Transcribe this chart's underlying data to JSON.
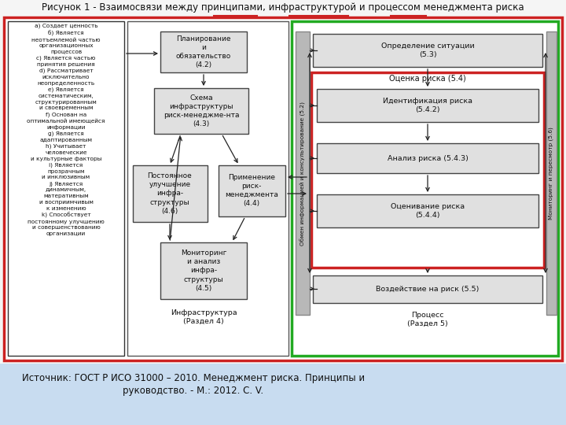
{
  "title": "Рисунок 1 - Взаимосвязи между принципами, инфраструктурой и процессом менеджмента риска",
  "footer_text": "Источник: ГОСТ Р ИСО 31000 – 2010. Менеджмент риска. Принципы и\nруководство. - М.: 2012. С. V.",
  "bg_color": "#f5f5f5",
  "footer_bg": "#c8dcf0",
  "main_border_color": "#cc2222",
  "green_border_color": "#22aa22",
  "red_inner_border": "#cc2222",
  "gray_box_fill": "#e0e0e0",
  "white_fill": "#ffffff",
  "dark_border": "#333333",
  "principles_text": "а) Создает ценность\nб) Является\nнеотъемлемой частью\nорганизационных\nпроцессов\nс) Является частью\nпринятия решения\nd) Рассматривает\nисключительно\nнеопределенность\nе) Является\nсистематическим,\nструктурированным\nи своевременным\nf) Основан на\nоптимальной имеющейся\nинформации\ng) Является\nадаптированным\nh) Учитывает\nчеловеческие\nи культурные факторы\ni) Является\nпрозрачным\nи инклюзивным\nj) Является\nдинамичным,\nматеративным\nи восприимчивым\nк изменению\nk) Способствует\nпостоянному улучшению\nи совершенствованию\nорганизации",
  "box_planning": "Планирование\nи\nобязательство\n(4.2)",
  "box_schema": "Схема\nинфраструктуры\nриск-менеджме-нта\n(4.3)",
  "box_constant": "Постоянное\nулучшение\nинфра-\nструктуры\n(4.6)",
  "box_apply": "Применение\nриск-\nменеджмента\n(4.4)",
  "box_monitoring": "Мониторинг\nи анализ\nинфра-\nструктуры\n(4.5)",
  "box_infra_label": "Инфраструктура\n(Раздел 4)",
  "box_situation": "Определение ситуации\n(5.3)",
  "box_risk_assess": "Оценка риска (5.4)",
  "box_identification": "Идентификация риска\n(5.4.2)",
  "box_analysis": "Анализ риска (5.4.3)",
  "box_evaluation": "Оценивание риска\n(5.4.4)",
  "box_impact": "Воздействие на риск (5.5)",
  "box_process_label": "Процесс\n(Раздел 5)",
  "sidebar_left_text": "Обмен информацией и консультирование (5.2)",
  "sidebar_right_text": "Мониторинг и пересмотр (5.6)"
}
